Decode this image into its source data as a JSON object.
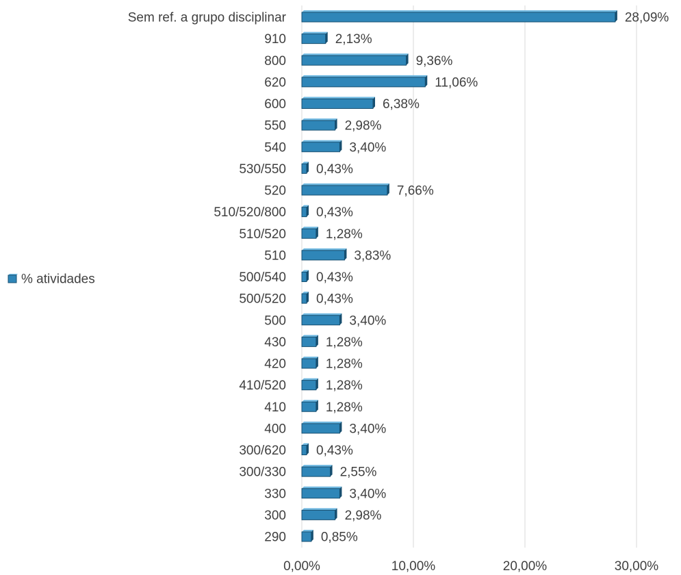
{
  "chart_data": {
    "type": "bar",
    "orientation": "horizontal",
    "style": "3d-bevel",
    "categories": [
      "290",
      "300",
      "330",
      "300/330",
      "300/620",
      "400",
      "410",
      "410/520",
      "420",
      "430",
      "500",
      "500/520",
      "500/540",
      "510",
      "510/520",
      "510/520/800",
      "520",
      "530/550",
      "540",
      "550",
      "600",
      "620",
      "800",
      "910",
      "Sem ref. a grupo disciplinar"
    ],
    "series": [
      {
        "name": "% atividades",
        "values": [
          0.85,
          2.98,
          3.4,
          2.55,
          0.43,
          3.4,
          1.28,
          1.28,
          1.28,
          1.28,
          3.4,
          0.43,
          0.43,
          3.83,
          1.28,
          0.43,
          7.66,
          0.43,
          3.4,
          2.98,
          6.38,
          11.06,
          9.36,
          2.13,
          28.09
        ],
        "data_labels": [
          "0,85%",
          "2,98%",
          "3,40%",
          "2,55%",
          "0,43%",
          "3,40%",
          "1,28%",
          "1,28%",
          "1,28%",
          "1,28%",
          "3,40%",
          "0,43%",
          "0,43%",
          "3,83%",
          "1,28%",
          "0,43%",
          "7,66%",
          "0,43%",
          "3,40%",
          "2,98%",
          "6,38%",
          "11,06%",
          "9,36%",
          "2,13%",
          "28,09%"
        ]
      }
    ],
    "x_ticks": [
      0,
      10,
      20,
      30
    ],
    "x_tick_labels": [
      "0,00%",
      "10,00%",
      "20,00%",
      "30,00%"
    ],
    "xlim": [
      0,
      30
    ],
    "grid": true,
    "legend_position": "left",
    "colors": {
      "bar_face": "#2f86b8",
      "bar_top": "#6fb8e0",
      "bar_side": "#174f70",
      "grid": "#d9d9d9",
      "text": "#404040"
    }
  }
}
